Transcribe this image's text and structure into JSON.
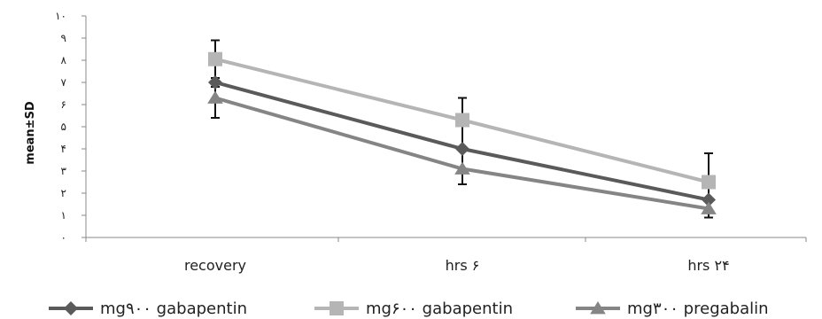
{
  "chart_data": {
    "type": "line",
    "ylabel": "mean±SD",
    "categories": [
      "recovery",
      "hrs ۶",
      "hrs ۲۴"
    ],
    "yticks": [
      "۰",
      "۱",
      "۲",
      "۳",
      "۴",
      "۵",
      "۶",
      "۷",
      "۸",
      "۹",
      "۱۰"
    ],
    "ylim": [
      0,
      10
    ],
    "grid": false,
    "legend_position": "bottom",
    "series": [
      {
        "name": "mg۹۰۰ gabapentin",
        "values": [
          7.0,
          4.0,
          1.7
        ],
        "color": "#5a5a5a",
        "marker": "diamond",
        "error": [
          null,
          [
            2.4,
            6.3
          ],
          null
        ]
      },
      {
        "name": "mg۶۰۰ gabapentin",
        "values": [
          8.05,
          5.3,
          2.5
        ],
        "color": "#b5b5b5",
        "marker": "square",
        "error": [
          [
            6.8,
            8.9
          ],
          null,
          [
            0.9,
            3.8
          ]
        ]
      },
      {
        "name": "mg۳۰۰ pregabalin",
        "values": [
          6.3,
          3.1,
          1.3
        ],
        "color": "#858585",
        "marker": "triangle",
        "error": [
          [
            5.4,
            7.2
          ],
          null,
          null
        ]
      }
    ]
  }
}
